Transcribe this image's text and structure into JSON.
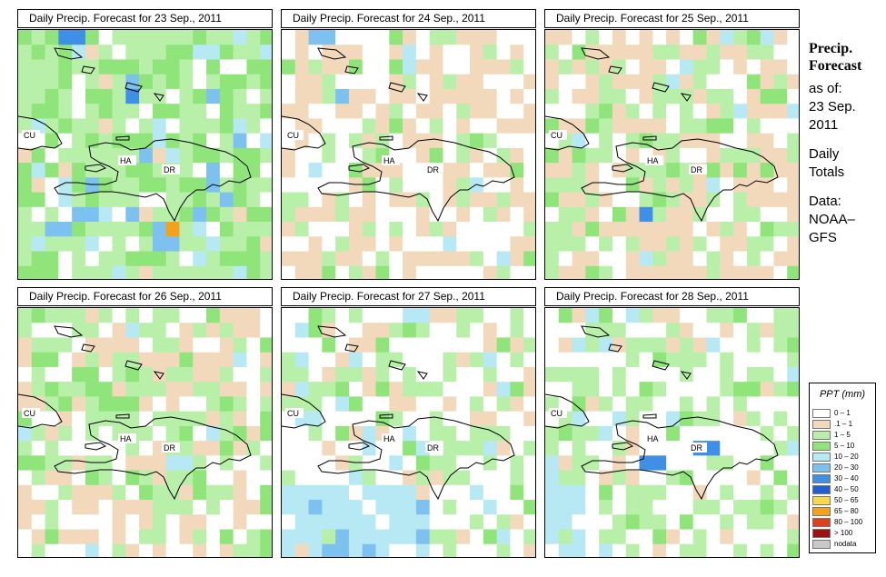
{
  "sidebar": {
    "title_line1": "Precip.",
    "title_line2": "Forecast",
    "as_of_label": "as of:",
    "as_of_date_line1": "23 Sep.",
    "as_of_date_line2": "2011",
    "totals_line1": "Daily",
    "totals_line2": "Totals",
    "data_label": "Data:",
    "data_source_line1": "NOAA–",
    "data_source_line2": "GFS"
  },
  "map_labels": {
    "cuba": "CU",
    "haiti": "HA",
    "dominican_republic": "DR"
  },
  "panels": [
    {
      "title": "Daily Precip. Forecast for  23 Sep., 2011"
    },
    {
      "title": "Daily Precip. Forecast for  24 Sep., 2011"
    },
    {
      "title": "Daily Precip. Forecast for  25 Sep., 2011"
    },
    {
      "title": "Daily Precip. Forecast for  26 Sep., 2011"
    },
    {
      "title": "Daily Precip. Forecast for  27 Sep., 2011"
    },
    {
      "title": "Daily Precip. Forecast for  28 Sep., 2011"
    }
  ],
  "legend": {
    "title": "PPT (mm)",
    "entries": [
      {
        "label": "0 – 1",
        "color": "#ffffff"
      },
      {
        "label": ".1 – 1",
        "color": "#f2d9bb"
      },
      {
        "label": "1 – 5",
        "color": "#b9f0a9"
      },
      {
        "label": "5 – 10",
        "color": "#8fe57a"
      },
      {
        "label": "10 – 20",
        "color": "#b7e9f5"
      },
      {
        "label": "20 – 30",
        "color": "#7dc1f0"
      },
      {
        "label": "30 – 40",
        "color": "#3f8fe6"
      },
      {
        "label": "40 – 50",
        "color": "#1f5fd6"
      },
      {
        "label": "50 – 65",
        "color": "#f9d84a"
      },
      {
        "label": "65 – 80",
        "color": "#f5a21a"
      },
      {
        "label": "80 – 100",
        "color": "#e0401a"
      },
      {
        "label": "> 100",
        "color": "#a01010"
      },
      {
        "label": "nodata",
        "color": "#c8c8c8"
      }
    ]
  }
}
